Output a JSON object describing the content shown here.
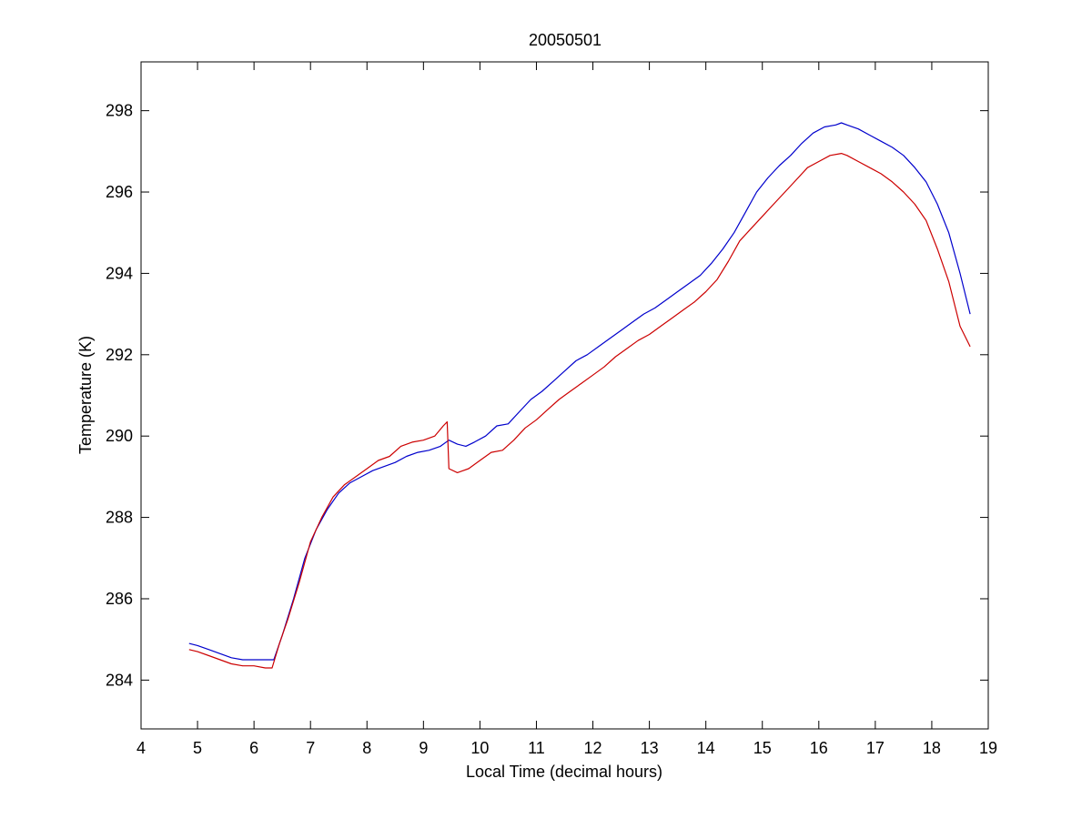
{
  "figure": {
    "background": "#ffffff"
  },
  "chart_data": {
    "type": "line",
    "title": "20050501",
    "xlabel": "Local Time (decimal hours)",
    "ylabel": "Temperature (K)",
    "xlim": [
      4,
      19
    ],
    "ylim": [
      282.8,
      299.2
    ],
    "xticks": [
      4,
      5,
      6,
      7,
      8,
      9,
      10,
      11,
      12,
      13,
      14,
      15,
      16,
      17,
      18,
      19
    ],
    "yticks": [
      284,
      286,
      288,
      290,
      292,
      294,
      296,
      298
    ],
    "grid": false,
    "legend": "none",
    "series": [
      {
        "color": "#0000cc",
        "x": [
          4.85,
          5.0,
          5.2,
          5.4,
          5.6,
          5.8,
          6.0,
          6.2,
          6.35,
          6.5,
          6.7,
          6.9,
          7.1,
          7.3,
          7.5,
          7.7,
          7.9,
          8.1,
          8.3,
          8.5,
          8.7,
          8.9,
          9.1,
          9.3,
          9.45,
          9.6,
          9.75,
          9.9,
          10.1,
          10.3,
          10.5,
          10.7,
          10.9,
          11.1,
          11.3,
          11.5,
          11.7,
          11.9,
          12.1,
          12.3,
          12.5,
          12.7,
          12.9,
          13.1,
          13.3,
          13.5,
          13.7,
          13.9,
          14.1,
          14.3,
          14.5,
          14.7,
          14.9,
          15.1,
          15.3,
          15.5,
          15.7,
          15.9,
          16.1,
          16.3,
          16.4,
          16.5,
          16.7,
          16.9,
          17.1,
          17.3,
          17.5,
          17.7,
          17.9,
          18.1,
          18.3,
          18.5,
          18.68
        ],
        "y": [
          284.9,
          284.85,
          284.75,
          284.65,
          284.55,
          284.5,
          284.5,
          284.5,
          284.5,
          285.1,
          286.0,
          287.0,
          287.7,
          288.2,
          288.6,
          288.85,
          289.0,
          289.15,
          289.25,
          289.35,
          289.5,
          289.6,
          289.65,
          289.75,
          289.9,
          289.8,
          289.75,
          289.85,
          290.0,
          290.25,
          290.3,
          290.6,
          290.9,
          291.1,
          291.35,
          291.6,
          291.85,
          292.0,
          292.2,
          292.4,
          292.6,
          292.8,
          293.0,
          293.15,
          293.35,
          293.55,
          293.75,
          293.95,
          294.25,
          294.6,
          295.0,
          295.5,
          296.0,
          296.35,
          296.65,
          296.9,
          297.2,
          297.45,
          297.6,
          297.65,
          297.7,
          297.65,
          297.55,
          297.4,
          297.25,
          297.1,
          296.9,
          296.6,
          296.25,
          295.7,
          295.0,
          294.0,
          293.0
        ]
      },
      {
        "color": "#cc0000",
        "x": [
          4.85,
          5.0,
          5.2,
          5.4,
          5.6,
          5.8,
          6.0,
          6.2,
          6.32,
          6.45,
          6.6,
          6.8,
          7.0,
          7.2,
          7.4,
          7.6,
          7.8,
          8.0,
          8.2,
          8.4,
          8.6,
          8.8,
          9.0,
          9.2,
          9.35,
          9.42,
          9.45,
          9.6,
          9.8,
          10.0,
          10.2,
          10.4,
          10.6,
          10.8,
          11.0,
          11.2,
          11.4,
          11.6,
          11.8,
          12.0,
          12.2,
          12.4,
          12.6,
          12.8,
          13.0,
          13.2,
          13.4,
          13.6,
          13.8,
          14.0,
          14.2,
          14.4,
          14.6,
          14.8,
          15.0,
          15.2,
          15.4,
          15.6,
          15.8,
          16.0,
          16.2,
          16.4,
          16.5,
          16.7,
          16.9,
          17.1,
          17.3,
          17.5,
          17.7,
          17.9,
          18.1,
          18.3,
          18.5,
          18.68
        ],
        "y": [
          284.75,
          284.7,
          284.6,
          284.5,
          284.4,
          284.35,
          284.35,
          284.3,
          284.3,
          284.9,
          285.5,
          286.4,
          287.4,
          288.0,
          288.5,
          288.8,
          289.0,
          289.2,
          289.4,
          289.5,
          289.75,
          289.85,
          289.9,
          290.0,
          290.25,
          290.35,
          289.2,
          289.1,
          289.2,
          289.4,
          289.6,
          289.65,
          289.9,
          290.2,
          290.4,
          290.65,
          290.9,
          291.1,
          291.3,
          291.5,
          291.7,
          291.95,
          292.15,
          292.35,
          292.5,
          292.7,
          292.9,
          293.1,
          293.3,
          293.55,
          293.85,
          294.3,
          294.8,
          295.1,
          295.4,
          295.7,
          296.0,
          296.3,
          296.6,
          296.75,
          296.9,
          296.95,
          296.9,
          296.75,
          296.6,
          296.45,
          296.25,
          296.0,
          295.7,
          295.3,
          294.6,
          293.8,
          292.7,
          292.2
        ]
      }
    ]
  }
}
